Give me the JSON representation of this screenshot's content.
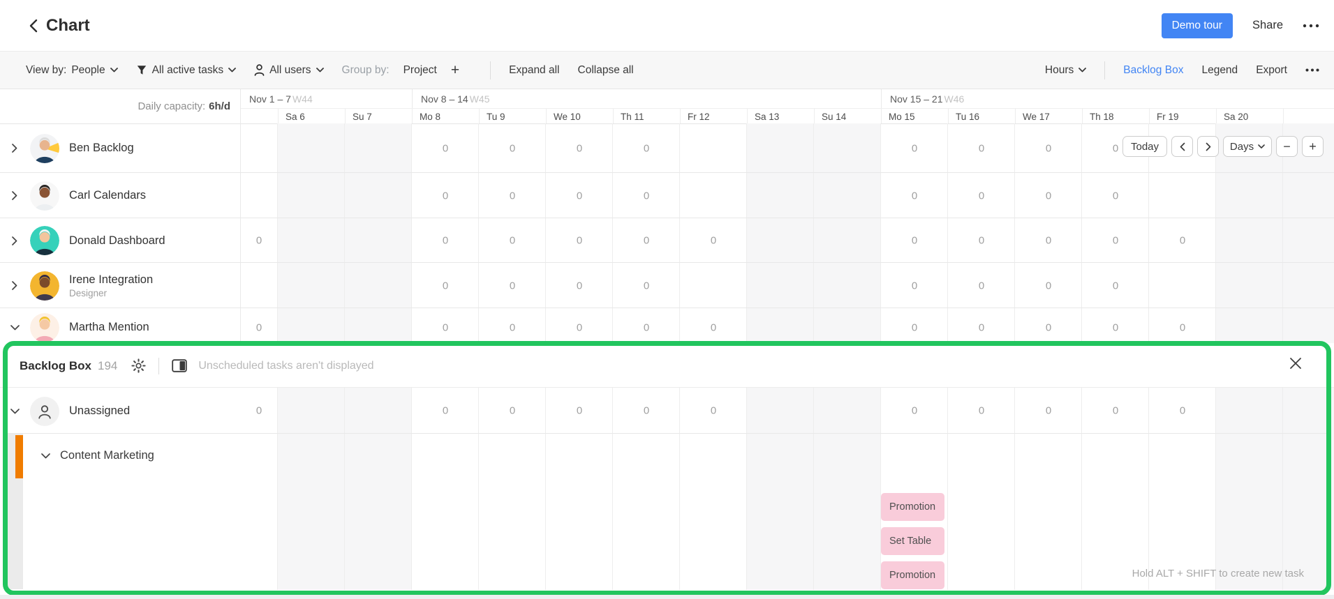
{
  "header": {
    "title": "Chart",
    "demo_tour": "Demo tour",
    "share": "Share"
  },
  "toolbar": {
    "view_by_label": "View by:",
    "view_by_value": "People",
    "tasks_filter": "All active tasks",
    "users_filter": "All users",
    "group_by_label": "Group by:",
    "group_by_value": "Project",
    "add_group": "+",
    "expand_all": "Expand all",
    "collapse_all": "Collapse all",
    "units": "Hours",
    "backlog_box": "Backlog Box",
    "legend": "Legend",
    "export": "Export",
    "link_color": "#4285f4"
  },
  "timeline": {
    "daily_capacity_label": "Daily capacity:",
    "daily_capacity_value": "6h/d",
    "weeks": [
      {
        "label": "Nov 1 – 7",
        "num": "W44",
        "cols": 3
      },
      {
        "label": "Nov 8 – 14",
        "num": "W45",
        "cols": 7
      },
      {
        "label": "Nov 15 – 21",
        "num": "W46",
        "cols": 7
      }
    ],
    "columns": [
      {
        "key": "Fr 5",
        "label": "",
        "weekend": false
      },
      {
        "key": "Sa 6",
        "label": "Sa 6",
        "weekend": true
      },
      {
        "key": "Su 7",
        "label": "Su 7",
        "weekend": true
      },
      {
        "key": "Mo 8",
        "label": "Mo 8",
        "weekend": false
      },
      {
        "key": "Tu 9",
        "label": "Tu 9",
        "weekend": false
      },
      {
        "key": "We 10",
        "label": "We 10",
        "weekend": false
      },
      {
        "key": "Th 11",
        "label": "Th 11",
        "weekend": false
      },
      {
        "key": "Fr 12",
        "label": "Fr 12",
        "weekend": false
      },
      {
        "key": "Sa 13",
        "label": "Sa 13",
        "weekend": true
      },
      {
        "key": "Su 14",
        "label": "Su 14",
        "weekend": true
      },
      {
        "key": "Mo 15",
        "label": "Mo 15",
        "weekend": false
      },
      {
        "key": "Tu 16",
        "label": "Tu 16",
        "weekend": false
      },
      {
        "key": "We 17",
        "label": "We 17",
        "weekend": false
      },
      {
        "key": "Th 18",
        "label": "Th 18",
        "weekend": false
      },
      {
        "key": "Fr 19",
        "label": "Fr 19",
        "weekend": false
      },
      {
        "key": "Sa 20",
        "label": "Sa 20",
        "weekend": true
      },
      {
        "key": "Su 21",
        "label": "",
        "weekend": true
      }
    ],
    "controls": {
      "today": "Today",
      "scale": "Days",
      "zoom_out": "−",
      "zoom_in": "+"
    }
  },
  "people": [
    {
      "name": "Ben Backlog",
      "role": "",
      "expanded": false,
      "avatar": {
        "bg": "#f2f3f5",
        "skin": "#e8b48e",
        "hair": "#dcdcdc",
        "shirt": "#1e3f5f",
        "accent": "#ffc93c"
      },
      "cells": [
        {
          "col": "Mo 8",
          "value": "0"
        },
        {
          "col": "Tu 9",
          "value": "0"
        },
        {
          "col": "We 10",
          "value": "0"
        },
        {
          "col": "Th 11",
          "value": "0"
        },
        {
          "col": "Mo 15",
          "value": "0"
        },
        {
          "col": "Tu 16",
          "value": "0"
        },
        {
          "col": "We 17",
          "value": "0"
        },
        {
          "col": "Th 18",
          "value": "0"
        }
      ]
    },
    {
      "name": "Carl Calendars",
      "role": "",
      "expanded": false,
      "avatar": {
        "bg": "#f7f7f7",
        "skin": "#8a5434",
        "hair": "#262321",
        "shirt": "#eceff1",
        "accent": ""
      },
      "cells": [
        {
          "col": "Mo 8",
          "value": "0"
        },
        {
          "col": "Tu 9",
          "value": "0"
        },
        {
          "col": "We 10",
          "value": "0"
        },
        {
          "col": "Th 11",
          "value": "0"
        },
        {
          "col": "Mo 15",
          "value": "0"
        },
        {
          "col": "Tu 16",
          "value": "0"
        },
        {
          "col": "We 17",
          "value": "0"
        },
        {
          "col": "Th 18",
          "value": "0"
        }
      ]
    },
    {
      "name": "Donald Dashboard",
      "role": "",
      "expanded": false,
      "avatar": {
        "bg": "#36d1ba",
        "skin": "#f3c59d",
        "hair": "#f5f5f5",
        "shirt": "#17303e",
        "accent": ""
      },
      "cells": [
        {
          "col": "Fr 5",
          "value": "0"
        },
        {
          "col": "Mo 8",
          "value": "0"
        },
        {
          "col": "Tu 9",
          "value": "0"
        },
        {
          "col": "We 10",
          "value": "0"
        },
        {
          "col": "Th 11",
          "value": "0"
        },
        {
          "col": "Fr 12",
          "value": "0"
        },
        {
          "col": "Mo 15",
          "value": "0"
        },
        {
          "col": "Tu 16",
          "value": "0"
        },
        {
          "col": "We 17",
          "value": "0"
        },
        {
          "col": "Th 18",
          "value": "0"
        },
        {
          "col": "Fr 19",
          "value": "0"
        }
      ]
    },
    {
      "name": "Irene Integration",
      "role": "Designer",
      "expanded": false,
      "avatar": {
        "bg": "#f3b52f",
        "skin": "#7c4b2a",
        "hair": "#332a45",
        "shirt": "#403a4d",
        "accent": ""
      },
      "cells": [
        {
          "col": "Mo 8",
          "value": "0"
        },
        {
          "col": "Tu 9",
          "value": "0"
        },
        {
          "col": "We 10",
          "value": "0"
        },
        {
          "col": "Th 11",
          "value": "0"
        },
        {
          "col": "Mo 15",
          "value": "0"
        },
        {
          "col": "Tu 16",
          "value": "0"
        },
        {
          "col": "We 17",
          "value": "0"
        },
        {
          "col": "Th 18",
          "value": "0"
        }
      ]
    },
    {
      "name": "Martha Mention",
      "role": "",
      "expanded": true,
      "avatar": {
        "bg": "#fdf0e6",
        "skin": "#f5c9a4",
        "hair": "#f2c230",
        "shirt": "#f3aab5",
        "accent": ""
      },
      "cells": [
        {
          "col": "Fr 5",
          "value": "0"
        },
        {
          "col": "Mo 8",
          "value": "0"
        },
        {
          "col": "Tu 9",
          "value": "0"
        },
        {
          "col": "We 10",
          "value": "0"
        },
        {
          "col": "Th 11",
          "value": "0"
        },
        {
          "col": "Fr 12",
          "value": "0"
        },
        {
          "col": "Mo 15",
          "value": "0"
        },
        {
          "col": "Tu 16",
          "value": "0"
        },
        {
          "col": "We 17",
          "value": "0"
        },
        {
          "col": "Th 18",
          "value": "0"
        },
        {
          "col": "Fr 19",
          "value": "0"
        }
      ]
    }
  ],
  "backlog": {
    "title": "Backlog Box",
    "count": "194",
    "notice": "Unscheduled tasks aren't displayed",
    "border_color": "#21c55e",
    "unassigned": {
      "label": "Unassigned",
      "cells": [
        {
          "col": "Fr 5",
          "value": "0"
        },
        {
          "col": "Mo 8",
          "value": "0"
        },
        {
          "col": "Tu 9",
          "value": "0"
        },
        {
          "col": "We 10",
          "value": "0"
        },
        {
          "col": "Th 11",
          "value": "0"
        },
        {
          "col": "Fr 12",
          "value": "0"
        },
        {
          "col": "Mo 15",
          "value": "0"
        },
        {
          "col": "Tu 16",
          "value": "0"
        },
        {
          "col": "We 17",
          "value": "0"
        },
        {
          "col": "Th 18",
          "value": "0"
        },
        {
          "col": "Fr 19",
          "value": "0"
        }
      ]
    },
    "group": {
      "label": "Content Marketing",
      "color": "#f07c00"
    },
    "tasks": [
      "Promotion",
      "Set Table",
      "Promotion"
    ],
    "task_bg": "#f9ccda",
    "task_column": "Mo 15",
    "hint": "Hold ALT + SHIFT to create new task"
  }
}
